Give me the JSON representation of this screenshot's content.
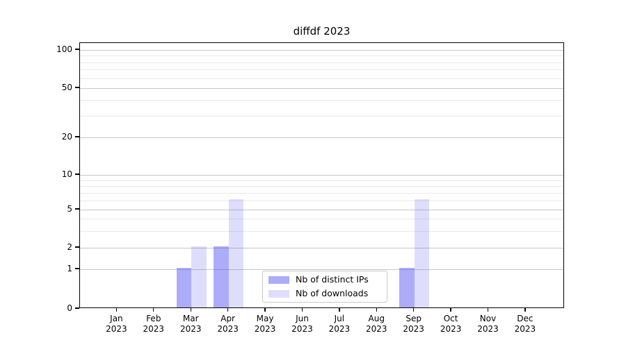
{
  "chart_data": {
    "type": "bar",
    "title": "diffdf 2023",
    "categories": [
      "Jan",
      "Feb",
      "Mar",
      "Apr",
      "May",
      "Jun",
      "Jul",
      "Aug",
      "Sep",
      "Oct",
      "Nov",
      "Dec"
    ],
    "category_year": "2023",
    "series": [
      {
        "name": "Nb of distinct IPs",
        "color": "rgba(70,70,240,0.45)",
        "color_solid_hex": "#acacf8",
        "values": [
          0,
          0,
          1,
          2,
          0,
          0,
          0,
          0,
          1,
          0,
          0,
          0
        ]
      },
      {
        "name": "Nb of downloads",
        "color": "rgba(70,70,240,0.18)",
        "color_solid_hex": "#dcdcfa",
        "values": [
          0,
          0,
          2,
          6,
          0,
          0,
          0,
          0,
          6,
          0,
          0,
          0
        ]
      }
    ],
    "y_axis": {
      "scale": "log-like",
      "ticks": [
        0,
        1,
        2,
        5,
        10,
        20,
        50,
        100
      ],
      "minor_gridlines": [
        3,
        4,
        6,
        7,
        8,
        9,
        30,
        40,
        60,
        70,
        80,
        90
      ],
      "range_top": 110
    },
    "x_axis": {
      "label_lines": 2
    },
    "legend": {
      "position": "lower center"
    },
    "grid": true
  }
}
